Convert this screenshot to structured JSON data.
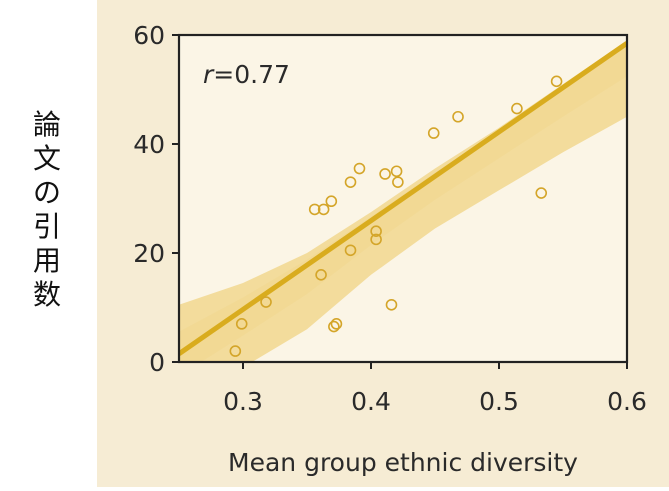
{
  "chart_data": {
    "type": "scatter",
    "title": "",
    "annotation": "r=0.77",
    "annotation_parts": [
      "r",
      "=0.77"
    ],
    "xlabel": "Mean group ethnic diversity",
    "ylabel": "論文の引用数",
    "xlim": [
      0.25,
      0.6
    ],
    "ylim": [
      0,
      60
    ],
    "xticks": [
      0.3,
      0.4,
      0.5,
      0.6
    ],
    "xtick_labels": [
      "0.3",
      "0.4",
      "0.5",
      "0.6"
    ],
    "yticks": [
      0,
      20,
      40,
      60
    ],
    "ytick_labels": [
      "0",
      "20",
      "40",
      "60"
    ],
    "grid": false,
    "points": [
      {
        "x": 0.294,
        "y": 2
      },
      {
        "x": 0.299,
        "y": 7
      },
      {
        "x": 0.318,
        "y": 11
      },
      {
        "x": 0.356,
        "y": 28
      },
      {
        "x": 0.363,
        "y": 28
      },
      {
        "x": 0.369,
        "y": 29.5
      },
      {
        "x": 0.361,
        "y": 16
      },
      {
        "x": 0.371,
        "y": 6.5
      },
      {
        "x": 0.373,
        "y": 7
      },
      {
        "x": 0.384,
        "y": 20.5
      },
      {
        "x": 0.384,
        "y": 33
      },
      {
        "x": 0.391,
        "y": 35.5
      },
      {
        "x": 0.404,
        "y": 24
      },
      {
        "x": 0.404,
        "y": 22.5
      },
      {
        "x": 0.411,
        "y": 34.5
      },
      {
        "x": 0.416,
        "y": 10.5
      },
      {
        "x": 0.42,
        "y": 35
      },
      {
        "x": 0.421,
        "y": 33
      },
      {
        "x": 0.449,
        "y": 42
      },
      {
        "x": 0.468,
        "y": 45
      },
      {
        "x": 0.514,
        "y": 46.5
      },
      {
        "x": 0.533,
        "y": 31
      },
      {
        "x": 0.545,
        "y": 51.5
      }
    ],
    "fit_line": {
      "x": [
        0.25,
        0.6
      ],
      "y": [
        1.5,
        58.5
      ]
    },
    "confidence_band": {
      "x": [
        0.25,
        0.3,
        0.35,
        0.4,
        0.45,
        0.5,
        0.55,
        0.6
      ],
      "upper": [
        10.5,
        14.5,
        20,
        27.5,
        35.5,
        43,
        51,
        59
      ],
      "lower": [
        -7.5,
        -1,
        6,
        16,
        24.5,
        31.5,
        38.5,
        45
      ]
    },
    "colors": {
      "figure_background": "#f6ecd4",
      "plot_background": "#fbf5e6",
      "band": "#f1d78e",
      "line": "#d9ac1e",
      "marker": "#d4a529",
      "axis": "#222222",
      "text": "#2a2a2a"
    }
  }
}
